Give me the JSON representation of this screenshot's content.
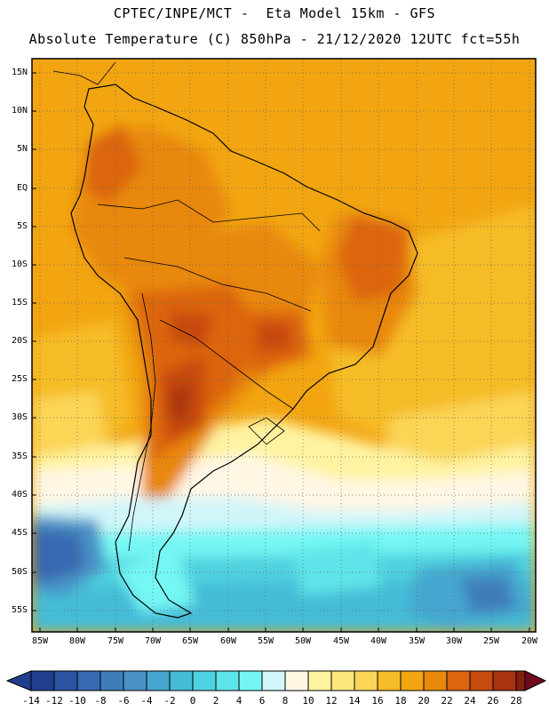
{
  "title": {
    "line1": "CPTEC/INPE/MCT -  Eta Model 15km - GFS",
    "line2": "Absolute Temperature (C) 850hPa - 21/12/2020 12UTC fct=55h"
  },
  "lat_labels": [
    "15N",
    "10N",
    "5N",
    "EQ",
    "5S",
    "10S",
    "15S",
    "20S",
    "25S",
    "30S",
    "35S",
    "40S",
    "45S",
    "50S",
    "55S"
  ],
  "lon_labels": [
    "85W",
    "80W",
    "75W",
    "70W",
    "65W",
    "60W",
    "55W",
    "50W",
    "45W",
    "40W",
    "35W",
    "30W",
    "25W",
    "20W"
  ],
  "colorbar": {
    "labels": [
      "-14",
      "-12",
      "-10",
      "-8",
      "-6",
      "-4",
      "-2",
      "0",
      "2",
      "4",
      "6",
      "8",
      "10",
      "12",
      "14",
      "16",
      "18",
      "20",
      "22",
      "24",
      "26",
      "28"
    ],
    "colors": [
      "#1f3f8c",
      "#2b55a3",
      "#3768b1",
      "#3f7cbb",
      "#4a92c6",
      "#45a6cf",
      "#45bcd7",
      "#4fd2df",
      "#5ee5e9",
      "#74f7f4",
      "#d1f5f9",
      "#fff7e4",
      "#fff3a1",
      "#fde77c",
      "#fbd556",
      "#f6bc27",
      "#f2a511",
      "#e8880c",
      "#dc650f",
      "#c74a0e",
      "#a83411",
      "#85200f",
      "#700a1f"
    ]
  },
  "map": {
    "base_color": "#f2a511",
    "features": [
      {
        "name": "warm-core-north-argentina",
        "temp_c": 24
      },
      {
        "name": "warm-core-central-brazil",
        "temp_c": 22
      },
      {
        "name": "warm-core-northeast-brazil",
        "temp_c": 22
      },
      {
        "name": "cold-core-south-atlantic",
        "temp_c": -8
      },
      {
        "name": "cold-core-south-pacific",
        "temp_c": -10
      }
    ]
  }
}
